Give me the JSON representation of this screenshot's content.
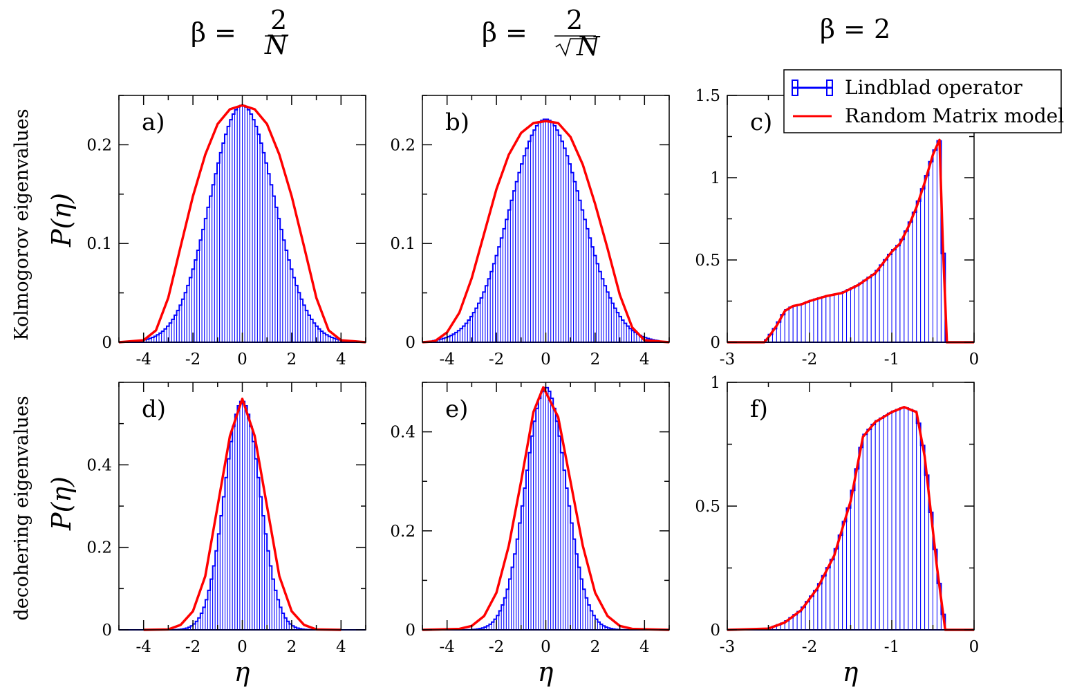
{
  "col_titles": [
    {
      "lhs": "β =",
      "num": "2",
      "den": "N",
      "type": "frac"
    },
    {
      "lhs": "β =",
      "num": "2",
      "den": "N",
      "type": "fracsqrt"
    },
    {
      "lhs": "β = 2",
      "type": "plain"
    }
  ],
  "row_labels": [
    "Kolmogorov eigenvalues",
    "decohering eigenvalues"
  ],
  "ylabel": "P(η)",
  "xlabel": "η",
  "legend": {
    "items": [
      {
        "name": "Lindblad operator",
        "color": "#0000ff"
      },
      {
        "name": "Random Matrix model",
        "color": "#ff0000"
      }
    ]
  },
  "colors": {
    "histogram": "#0000ff",
    "model": "#ff0000",
    "axes": "#000000"
  },
  "chart_data": [
    {
      "panel": "a)",
      "type": "bar",
      "xlim": [
        -5,
        5
      ],
      "ylim": [
        0,
        0.25
      ],
      "xticks": [
        -4,
        -2,
        0,
        2,
        4
      ],
      "xtick_labels": [
        "-4",
        "-2",
        "0",
        "2",
        "4"
      ],
      "yticks": [
        0,
        0.1,
        0.2
      ],
      "ytick_labels": [
        "0",
        "0.1",
        "0.2"
      ],
      "dist": {
        "kind": "gauss",
        "mu": 0.0,
        "sigma": 1.3,
        "peak": 0.24,
        "range": [
          -4.6,
          4.6
        ],
        "bins": 90
      },
      "model": {
        "x": [
          -5,
          -4,
          -3.5,
          -3,
          -2.5,
          -2,
          -1.5,
          -1,
          -0.5,
          0,
          0.5,
          1,
          1.5,
          2,
          2.5,
          3,
          3.5,
          4,
          5
        ],
        "y": [
          0,
          0.002,
          0.012,
          0.045,
          0.097,
          0.148,
          0.19,
          0.221,
          0.236,
          0.24,
          0.236,
          0.221,
          0.19,
          0.148,
          0.097,
          0.045,
          0.012,
          0.002,
          0
        ]
      }
    },
    {
      "panel": "b)",
      "type": "bar",
      "xlim": [
        -5,
        5
      ],
      "ylim": [
        0,
        0.25
      ],
      "xticks": [
        -4,
        -2,
        0,
        2,
        4
      ],
      "xtick_labels": [
        "-4",
        "-2",
        "0",
        "2",
        "4"
      ],
      "yticks": [
        0,
        0.1,
        0.2
      ],
      "ytick_labels": [
        "0",
        "0.1",
        "0.2"
      ],
      "dist": {
        "kind": "gauss",
        "mu": 0.0,
        "sigma": 1.45,
        "peak": 0.226,
        "range": [
          -4.6,
          4.6
        ],
        "bins": 90
      },
      "model": {
        "x": [
          -5,
          -4.5,
          -4,
          -3.5,
          -3,
          -2.5,
          -2,
          -1.5,
          -1,
          -0.5,
          0,
          0.5,
          1,
          1.5,
          2,
          2.5,
          3,
          3.5,
          4,
          5
        ],
        "y": [
          0,
          0.001,
          0.01,
          0.03,
          0.065,
          0.11,
          0.155,
          0.19,
          0.212,
          0.222,
          0.224,
          0.222,
          0.208,
          0.18,
          0.14,
          0.095,
          0.048,
          0.015,
          0.002,
          0
        ]
      }
    },
    {
      "panel": "c)",
      "type": "bar",
      "xlim": [
        -3,
        0
      ],
      "ylim": [
        0,
        1.5
      ],
      "xticks": [
        -3,
        -2,
        -1,
        0
      ],
      "xtick_labels": [
        "-3",
        "-2",
        "-1",
        "0"
      ],
      "yticks": [
        0,
        0.5,
        1,
        1.5
      ],
      "ytick_labels": [
        "0",
        "0.5",
        "1",
        "1.5"
      ],
      "dist": {
        "kind": "interp",
        "range": [
          -2.55,
          -0.3
        ],
        "bins": 45
      },
      "model": {
        "x": [
          -3,
          -2.55,
          -2.5,
          -2.4,
          -2.3,
          -2.2,
          -2.1,
          -2,
          -1.8,
          -1.6,
          -1.4,
          -1.2,
          -1,
          -0.9,
          -0.8,
          -0.7,
          -0.6,
          -0.5,
          -0.42,
          -0.38,
          -0.33,
          -0.2,
          0
        ],
        "y": [
          0,
          0,
          0.03,
          0.1,
          0.19,
          0.22,
          0.23,
          0.25,
          0.28,
          0.3,
          0.35,
          0.42,
          0.55,
          0.6,
          0.7,
          0.82,
          0.97,
          1.14,
          1.23,
          0.6,
          0,
          0,
          0
        ]
      }
    },
    {
      "panel": "d)",
      "type": "bar",
      "xlim": [
        -5,
        5
      ],
      "ylim": [
        0,
        0.6
      ],
      "xticks": [
        -4,
        -2,
        0,
        2,
        4
      ],
      "xtick_labels": [
        "-4",
        "-2",
        "0",
        "2",
        "4"
      ],
      "yticks": [
        0,
        0.2,
        0.4
      ],
      "ytick_labels": [
        "0",
        "0.2",
        "0.4"
      ],
      "dist": {
        "kind": "gauss",
        "mu": 0.0,
        "sigma": 0.72,
        "peak": 0.555,
        "range": [
          -3.6,
          3.6
        ],
        "bins": 72
      },
      "model": {
        "x": [
          -4,
          -3,
          -2.5,
          -2,
          -1.5,
          -1,
          -0.5,
          0,
          0.5,
          1,
          1.5,
          2,
          2.5,
          3,
          4
        ],
        "y": [
          0,
          0.001,
          0.012,
          0.045,
          0.13,
          0.3,
          0.47,
          0.56,
          0.47,
          0.3,
          0.13,
          0.045,
          0.012,
          0.001,
          0
        ]
      }
    },
    {
      "panel": "e)",
      "type": "bar",
      "xlim": [
        -5,
        5
      ],
      "ylim": [
        0,
        0.5
      ],
      "xticks": [
        -4,
        -2,
        0,
        2,
        4
      ],
      "xtick_labels": [
        "-4",
        "-2",
        "0",
        "2",
        "4"
      ],
      "yticks": [
        0,
        0.2,
        0.4
      ],
      "ytick_labels": [
        "0",
        "0.2",
        "0.4"
      ],
      "dist": {
        "kind": "gauss",
        "mu": 0.0,
        "sigma": 0.82,
        "peak": 0.49,
        "range": [
          -3.8,
          3.8
        ],
        "bins": 76
      },
      "model": {
        "x": [
          -5,
          -3.5,
          -3,
          -2.5,
          -2,
          -1.5,
          -1,
          -0.5,
          -0.1,
          0.5,
          1,
          1.5,
          2,
          2.5,
          3,
          3.5,
          5
        ],
        "y": [
          0,
          0.002,
          0.008,
          0.028,
          0.075,
          0.17,
          0.3,
          0.44,
          0.49,
          0.43,
          0.3,
          0.17,
          0.075,
          0.028,
          0.008,
          0.002,
          0
        ]
      }
    },
    {
      "panel": "f)",
      "type": "bar",
      "xlim": [
        -3,
        0
      ],
      "ylim": [
        0,
        1
      ],
      "xticks": [
        -3,
        -2,
        -1,
        0
      ],
      "xtick_labels": [
        "-3",
        "-2",
        "-1",
        "0"
      ],
      "yticks": [
        0,
        0.5,
        1
      ],
      "ytick_labels": [
        "0",
        "0.5",
        "1"
      ],
      "dist": {
        "kind": "interp",
        "range": [
          -2.6,
          -0.3
        ],
        "bins": 46
      },
      "model": {
        "x": [
          -3,
          -2.5,
          -2.3,
          -2.1,
          -1.9,
          -1.7,
          -1.5,
          -1.35,
          -1.2,
          -1.0,
          -0.85,
          -0.7,
          -0.6,
          -0.5,
          -0.45,
          -0.35,
          -0.3,
          0
        ],
        "y": [
          0,
          0.005,
          0.03,
          0.08,
          0.17,
          0.3,
          0.52,
          0.78,
          0.84,
          0.88,
          0.9,
          0.88,
          0.7,
          0.4,
          0.25,
          0,
          0,
          0
        ]
      }
    }
  ]
}
